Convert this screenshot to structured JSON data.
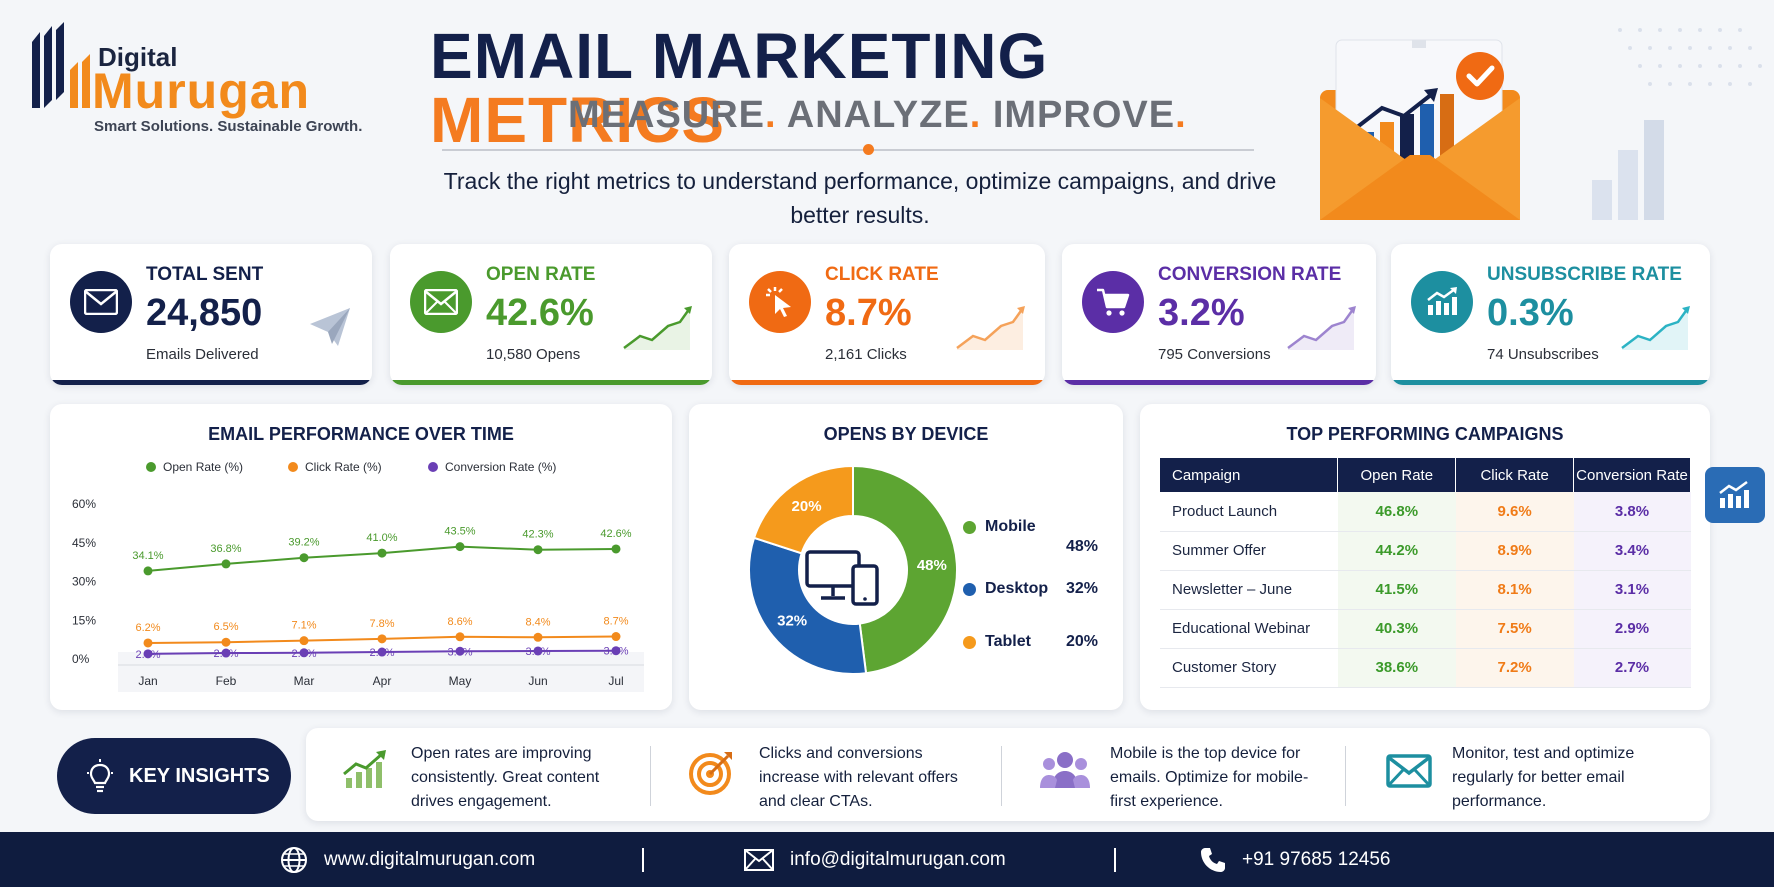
{
  "brand": {
    "name_top": "Digital",
    "name_main": "Murugan",
    "tagline": "Smart Solutions. Sustainable Growth."
  },
  "header": {
    "title_main": "EMAIL MARKETING ",
    "title_highlight": "METRICS",
    "subtitle_words": [
      "MEASURE",
      "ANALYZE",
      "IMPROVE"
    ],
    "subtitle_sep": ".",
    "tagline": "Track the right metrics to understand performance, optimize campaigns, and drive better results."
  },
  "kpis": [
    {
      "label": "TOTAL SENT",
      "value": "24,850",
      "sub": "Emails Delivered",
      "color": "#13204a",
      "icon": "mail-icon"
    },
    {
      "label": "OPEN RATE",
      "value": "42.6%",
      "sub": "10,580 Opens",
      "color": "#4a9a2d",
      "icon": "open-mail-icon"
    },
    {
      "label": "CLICK RATE",
      "value": "8.7%",
      "sub": "2,161 Clicks",
      "color": "#f06a13",
      "icon": "cursor-click-icon"
    },
    {
      "label": "CONVERSION RATE",
      "value": "3.2%",
      "sub": "795 Conversions",
      "color": "#5b2ea6",
      "icon": "cart-icon"
    },
    {
      "label": "UNSUBSCRIBE RATE",
      "value": "0.3%",
      "sub": "74 Unsubscribes",
      "color": "#1d8fa0",
      "icon": "trend-icon"
    }
  ],
  "performance": {
    "title": "EMAIL PERFORMANCE OVER TIME",
    "legend": [
      "Open Rate (%)",
      "Click Rate (%)",
      "Conversion Rate (%)"
    ]
  },
  "devices": {
    "title": "OPENS BY DEVICE",
    "items": [
      {
        "label": "Mobile",
        "pct": "48%"
      },
      {
        "label": "Desktop",
        "pct": "32%"
      },
      {
        "label": "Tablet",
        "pct": "20%"
      }
    ]
  },
  "campaigns": {
    "title": "TOP PERFORMING CAMPAIGNS",
    "headers": [
      "Campaign",
      "Open Rate",
      "Click Rate",
      "Conversion Rate"
    ],
    "rows": [
      [
        "Product Launch",
        "46.8%",
        "9.6%",
        "3.8%"
      ],
      [
        "Summer Offer",
        "44.2%",
        "8.9%",
        "3.4%"
      ],
      [
        "Newsletter – June",
        "41.5%",
        "8.1%",
        "3.1%"
      ],
      [
        "Educational Webinar",
        "40.3%",
        "7.5%",
        "2.9%"
      ],
      [
        "Customer Story",
        "38.6%",
        "7.2%",
        "2.7%"
      ]
    ]
  },
  "insights": {
    "label": "KEY INSIGHTS",
    "items": [
      {
        "text": "Open rates are improving consistently. Great content drives engagement.",
        "icon": "growth-chart-icon"
      },
      {
        "text": "Clicks and conversions increase with relevant offers and clear CTAs.",
        "icon": "target-icon"
      },
      {
        "text": "Mobile is the top device for emails. Optimize for mobile-first experience.",
        "icon": "users-icon"
      },
      {
        "text": "Monitor, test and optimize regularly for better email performance.",
        "icon": "mail-icon"
      }
    ]
  },
  "footer": {
    "website": "www.digitalmurugan.com",
    "email": "info@digitalmurugan.com",
    "phone": "+91 97685 12456",
    "separator": "|"
  },
  "colors": {
    "navy": "#13204a",
    "orange": "#f47b20",
    "green": "#4a9a2d",
    "blue": "#1f5fae",
    "purple": "#5b2ea6",
    "teal": "#1d8fa0"
  },
  "chart_data": [
    {
      "type": "line",
      "title": "EMAIL PERFORMANCE OVER TIME",
      "categories": [
        "Jan",
        "Feb",
        "Mar",
        "Apr",
        "May",
        "Jun",
        "Jul"
      ],
      "series": [
        {
          "name": "Open Rate (%)",
          "color": "#4a9a2d",
          "values": [
            34.1,
            36.8,
            39.2,
            41.0,
            43.5,
            42.3,
            42.6
          ],
          "labels": [
            "34.1%",
            "36.8%",
            "39.2%",
            "41.0%",
            "43.5%",
            "42.3%",
            "42.6%"
          ]
        },
        {
          "name": "Click Rate (%)",
          "color": "#f28a1c",
          "values": [
            6.2,
            6.5,
            7.1,
            7.8,
            8.6,
            8.4,
            8.7
          ],
          "labels": [
            "6.2%",
            "6.5%",
            "7.1%",
            "7.8%",
            "8.6%",
            "8.4%",
            "8.7%"
          ]
        },
        {
          "name": "Conversion Rate (%)",
          "color": "#6a3fb5",
          "values": [
            2.0,
            2.3,
            2.4,
            2.7,
            3.0,
            3.1,
            3.2
          ],
          "labels": [
            "2.0%",
            "2.3%",
            "2.4%",
            "2.7%",
            "3.0%",
            "3.1%",
            "3.2%"
          ]
        }
      ],
      "y_ticks": [
        "60%",
        "45%",
        "30%",
        "15%",
        "0%"
      ],
      "ylim": [
        0,
        60
      ],
      "legend": "top",
      "grid": false
    },
    {
      "type": "pie",
      "title": "OPENS BY DEVICE",
      "categories": [
        "Mobile",
        "Desktop",
        "Tablet"
      ],
      "values": [
        48,
        32,
        20
      ],
      "labels": [
        "48%",
        "32%",
        "20%"
      ],
      "colors": [
        "#5da532",
        "#1f5fae",
        "#f59a1c"
      ],
      "donut": true,
      "legend": "right"
    }
  ]
}
